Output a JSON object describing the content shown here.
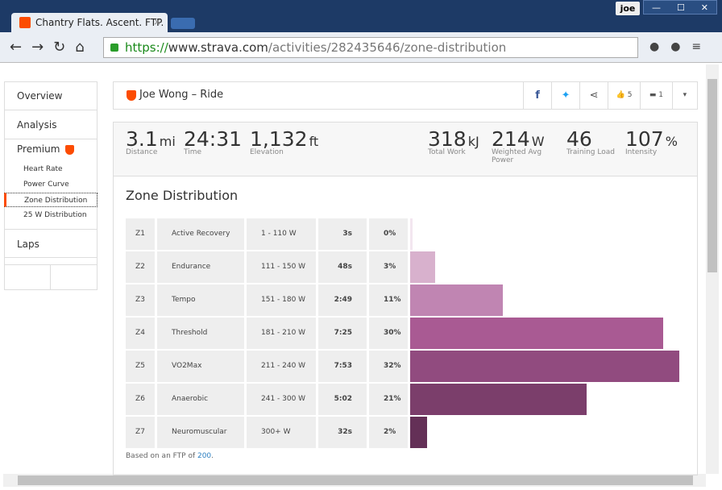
{
  "browser": {
    "tab_title": "Chantry Flats. Ascent. FTP.",
    "user": "joe",
    "url": {
      "scheme": "https://",
      "host": "www.strava.com",
      "path": "/activities/282435646/zone-distribution"
    }
  },
  "nav": {
    "items": [
      "Overview",
      "Analysis"
    ],
    "premium": "Premium",
    "sub_items": [
      "Heart Rate",
      "Power Curve",
      "Zone Distribution",
      "25 W Distribution"
    ],
    "selected": 2,
    "laps": "Laps"
  },
  "header": {
    "title": "Joe Wong – Ride",
    "likes": "5",
    "comments": "1"
  },
  "stats": [
    {
      "value": "3.1",
      "unit": "mi",
      "label": "Distance"
    },
    {
      "value": "24:31",
      "unit": null,
      "label": "Time"
    },
    {
      "value": "1,132",
      "unit": "ft",
      "label": "Elevation"
    },
    {
      "value": "318",
      "unit": "kJ",
      "label": "Total Work"
    },
    {
      "value": "214",
      "unit": "W",
      "label": "Weighted Avg Power"
    },
    {
      "value": "46",
      "unit": null,
      "label": "Training Load"
    },
    {
      "value": "107",
      "unit": "%",
      "label": "Intensity"
    }
  ],
  "zones": {
    "title": "Zone Distribution",
    "rows": [
      {
        "zone": "Z1",
        "name": "Active Recovery",
        "range": "1 - 110 W",
        "time": "3s",
        "share": {
          "value": 0,
          "label": "0%"
        },
        "color": "#f3e6f0"
      },
      {
        "zone": "Z2",
        "name": "Endurance",
        "range": "111 - 150 W",
        "time": "48s",
        "share": {
          "value": 3,
          "label": "3%"
        },
        "color": "#d8b1cd"
      },
      {
        "zone": "Z3",
        "name": "Tempo",
        "range": "151 - 180 W",
        "time": "2:49",
        "share": {
          "value": 11,
          "label": "11%"
        },
        "color": "#c085b2"
      },
      {
        "zone": "Z4",
        "name": "Threshold",
        "range": "181 - 210 W",
        "time": "7:25",
        "share": {
          "value": 30,
          "label": "30%"
        },
        "color": "#a95a93"
      },
      {
        "zone": "Z5",
        "name": "VO2Max",
        "range": "211 - 240 W",
        "time": "7:53",
        "share": {
          "value": 32,
          "label": "32%"
        },
        "color": "#914b7f"
      },
      {
        "zone": "Z6",
        "name": "Anaerobic",
        "range": "241 - 300 W",
        "time": "5:02",
        "share": {
          "value": 21,
          "label": "21%"
        },
        "color": "#7b3e6b"
      },
      {
        "zone": "Z7",
        "name": "Neuromuscular",
        "range": "300+ W",
        "time": "32s",
        "share": {
          "value": 2,
          "label": "2%"
        },
        "color": "#643057"
      }
    ],
    "footnote": {
      "text": "Based on an FTP of ",
      "ftp": "200",
      "end": "."
    }
  }
}
